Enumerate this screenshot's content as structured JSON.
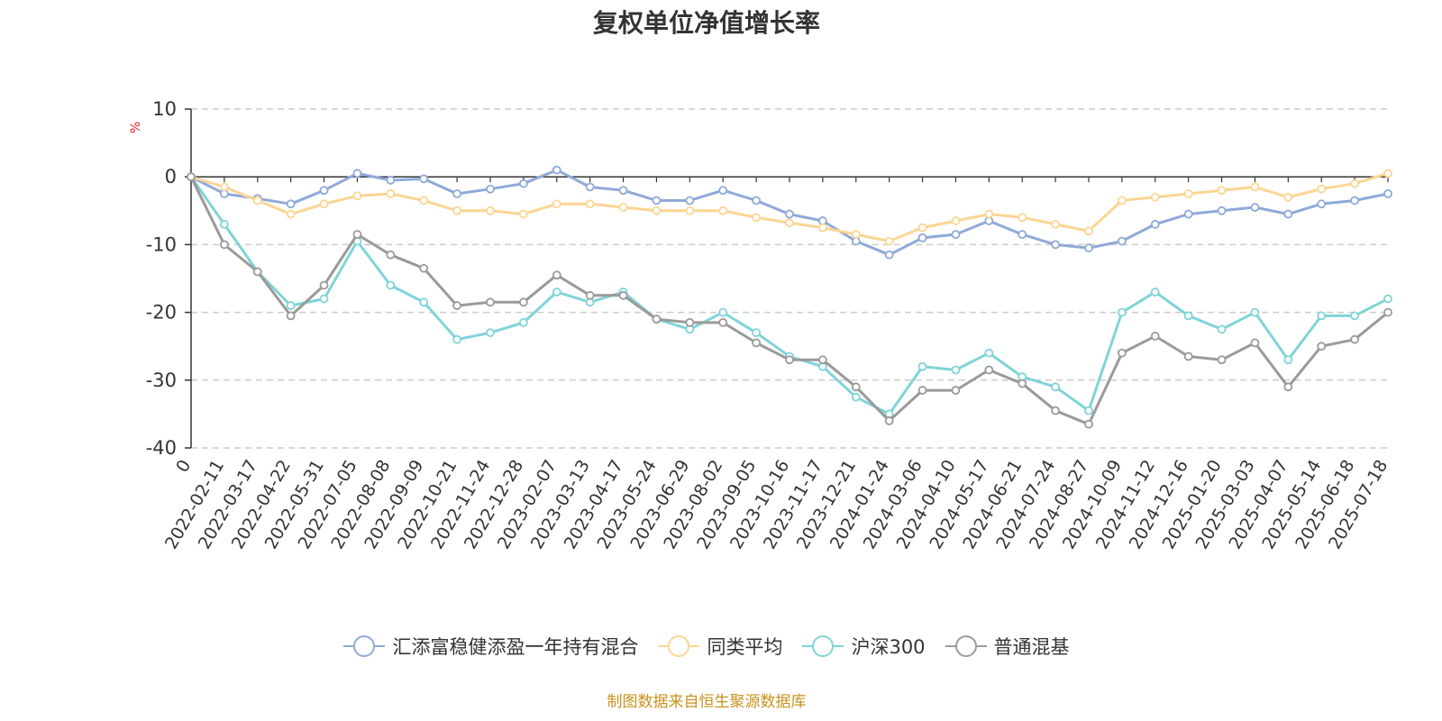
{
  "title": "复权单位净值增长率",
  "unit_label": "%",
  "source_note": "制图数据来自恒生聚源数据库",
  "chart_data": {
    "type": "line",
    "title": "复权单位净值增长率",
    "ylabel": "%",
    "ylim": [
      -40,
      10
    ],
    "y_ticks": [
      10,
      0,
      -10,
      -20,
      -30,
      -40
    ],
    "grid": true,
    "legend_position": "bottom",
    "x": [
      "0",
      "2022-02-11",
      "2022-03-17",
      "2022-04-22",
      "2022-05-31",
      "2022-07-05",
      "2022-08-08",
      "2022-09-09",
      "2022-10-21",
      "2022-11-24",
      "2022-12-28",
      "2023-02-07",
      "2023-03-13",
      "2023-04-17",
      "2023-05-24",
      "2023-06-29",
      "2023-08-02",
      "2023-09-05",
      "2023-10-16",
      "2023-11-17",
      "2023-12-21",
      "2024-01-24",
      "2024-03-06",
      "2024-04-10",
      "2024-05-17",
      "2024-06-21",
      "2024-07-24",
      "2024-08-27",
      "2024-10-09",
      "2024-11-12",
      "2024-12-16",
      "2025-01-20",
      "2025-03-03",
      "2025-04-07",
      "2025-05-14",
      "2025-06-18",
      "2025-07-18"
    ],
    "series": [
      {
        "name": "汇添富稳健添盈一年持有混合",
        "color": "#8fa9d8",
        "values": [
          0,
          -2.5,
          -3.2,
          -4.0,
          -2.0,
          0.5,
          -0.5,
          -0.3,
          -2.5,
          -1.8,
          -1.0,
          1.0,
          -1.5,
          -2.0,
          -3.5,
          -3.5,
          -2.0,
          -3.5,
          -5.5,
          -6.5,
          -9.5,
          -11.5,
          -9.0,
          -8.5,
          -6.5,
          -8.5,
          -10.0,
          -10.5,
          -9.5,
          -7.0,
          -5.5,
          -5.0,
          -4.5,
          -5.5,
          -4.0,
          -3.5,
          -2.5
        ]
      },
      {
        "name": "同类平均",
        "color": "#fcd593",
        "values": [
          0,
          -1.5,
          -3.5,
          -5.5,
          -4.0,
          -2.8,
          -2.5,
          -3.5,
          -5.0,
          -5.0,
          -5.5,
          -4.0,
          -4.0,
          -4.5,
          -5.0,
          -5.0,
          -5.0,
          -6.0,
          -6.8,
          -7.5,
          -8.5,
          -9.5,
          -7.5,
          -6.5,
          -5.5,
          -6.0,
          -7.0,
          -8.0,
          -3.5,
          -3.0,
          -2.5,
          -2.0,
          -1.5,
          -3.0,
          -1.8,
          -1.0,
          0.5
        ]
      },
      {
        "name": "沪深300",
        "color": "#7fd4d8",
        "values": [
          0,
          -7.0,
          -14.0,
          -19.0,
          -18.0,
          -9.5,
          -16.0,
          -18.5,
          -24.0,
          -23.0,
          -21.5,
          -17.0,
          -18.5,
          -17.0,
          -21.0,
          -22.5,
          -20.0,
          -23.0,
          -26.5,
          -28.0,
          -32.5,
          -35.0,
          -28.0,
          -28.5,
          -26.0,
          -29.5,
          -31.0,
          -34.5,
          -20.0,
          -17.0,
          -20.5,
          -22.5,
          -20.0,
          -27.0,
          -20.5,
          -20.5,
          -18.0
        ]
      },
      {
        "name": "普通混基",
        "color": "#9a9a9a",
        "values": [
          0,
          -10.0,
          -14.0,
          -20.5,
          -16.0,
          -8.5,
          -11.5,
          -13.5,
          -19.0,
          -18.5,
          -18.5,
          -14.5,
          -17.5,
          -17.5,
          -21.0,
          -21.5,
          -21.5,
          -24.5,
          -27.0,
          -27.0,
          -31.0,
          -36.0,
          -31.5,
          -31.5,
          -28.5,
          -30.5,
          -34.5,
          -36.5,
          -26.0,
          -23.5,
          -26.5,
          -27.0,
          -24.5,
          -31.0,
          -25.0,
          -24.0,
          -20.0
        ]
      }
    ]
  }
}
